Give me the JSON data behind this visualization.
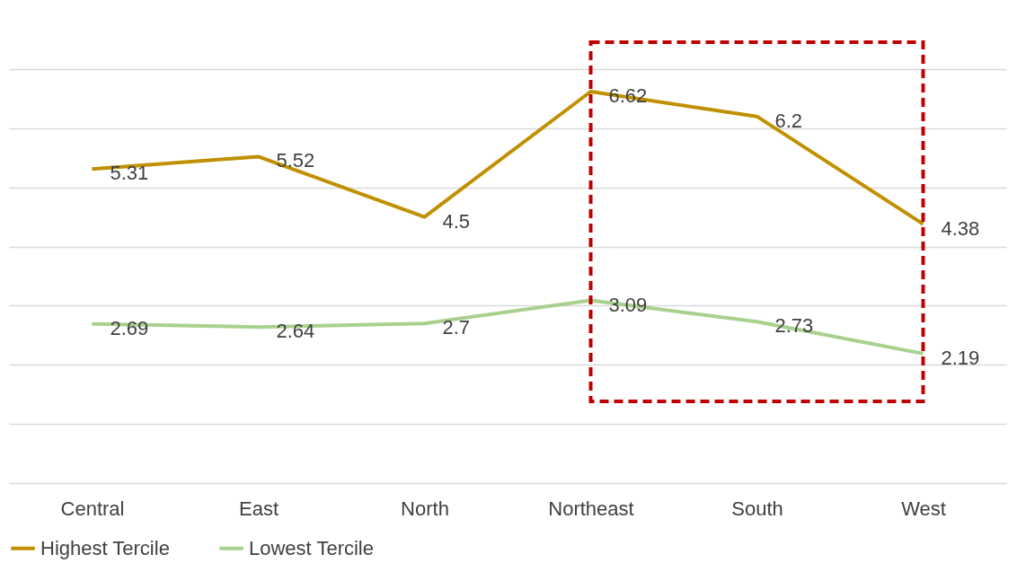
{
  "chart_data": {
    "type": "line",
    "categories": [
      "Central",
      "East",
      "North",
      "Northeast",
      "South",
      "West"
    ],
    "series": [
      {
        "name": "Highest  Tercile",
        "color": "#c09000",
        "values": [
          5.31,
          5.52,
          4.5,
          6.62,
          6.2,
          4.38
        ]
      },
      {
        "name": "Lowest Tercile",
        "color": "#a9d18e",
        "values": [
          2.69,
          2.64,
          2.7,
          3.09,
          2.73,
          2.19
        ]
      }
    ],
    "ylim": [
      0,
      7
    ],
    "yticks": [
      {
        "value": 0,
        "label": null
      },
      {
        "value": 1,
        "label": null
      },
      {
        "value": 2,
        "label": null
      },
      {
        "value": 3,
        "label": null
      },
      {
        "value": 4,
        "label": null
      },
      {
        "value": 5,
        "label": null
      },
      {
        "value": 6,
        "label": null
      },
      {
        "value": 7,
        "label": null
      }
    ],
    "tick_labels": "x",
    "grid": "y",
    "legend": "bottom",
    "data_labels": true,
    "marker": "none",
    "line_style": "solid"
  }
}
